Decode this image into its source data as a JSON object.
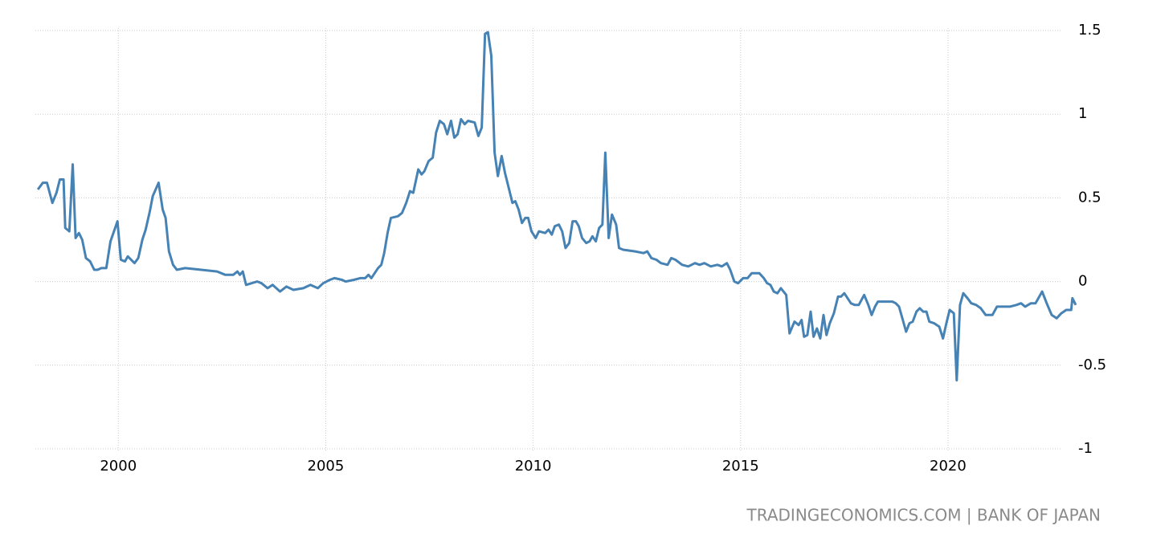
{
  "chart_data": {
    "type": "line",
    "source": "TRADINGECONOMICS.COM | BANK OF JAPAN",
    "color": "#4682b4",
    "grid": true,
    "xlim": [
      1998,
      2023.1
    ],
    "xticks": [
      2000,
      2005,
      2010,
      2015,
      2020
    ],
    "ylim": [
      -1,
      1.5
    ],
    "yticks": [
      1.5,
      1,
      0.5,
      0,
      -0.5,
      -1
    ],
    "x": [
      1998.06,
      1998.18,
      1998.28,
      1998.41,
      1998.51,
      1998.59,
      1998.68,
      1998.72,
      1998.82,
      1998.9,
      1998.97,
      1999.05,
      1999.13,
      1999.22,
      1999.32,
      1999.42,
      1999.5,
      1999.59,
      1999.71,
      1999.81,
      1999.98,
      2000.06,
      2000.16,
      2000.23,
      2000.39,
      2000.48,
      2000.58,
      2000.66,
      2000.76,
      2000.83,
      2000.97,
      2001.07,
      2001.14,
      2001.22,
      2001.32,
      2001.41,
      2001.61,
      2002.0,
      2002.38,
      2002.58,
      2002.77,
      2002.87,
      2002.93,
      2003.0,
      2003.08,
      2003.35,
      2003.45,
      2003.6,
      2003.72,
      2003.9,
      2004.05,
      2004.22,
      2004.46,
      2004.63,
      2004.81,
      2004.94,
      2005.1,
      2005.21,
      2005.39,
      2005.48,
      2005.68,
      2005.83,
      2005.95,
      2006.03,
      2006.1,
      2006.26,
      2006.34,
      2006.41,
      2006.49,
      2006.57,
      2006.74,
      2006.84,
      2006.94,
      2007.03,
      2007.11,
      2007.23,
      2007.31,
      2007.38,
      2007.48,
      2007.58,
      2007.66,
      2007.75,
      2007.85,
      2007.93,
      2008.02,
      2008.1,
      2008.18,
      2008.26,
      2008.35,
      2008.43,
      2008.59,
      2008.68,
      2008.76,
      2008.84,
      2008.91,
      2008.99,
      2009.07,
      2009.15,
      2009.24,
      2009.32,
      2009.42,
      2009.5,
      2009.57,
      2009.65,
      2009.73,
      2009.81,
      2009.88,
      2009.96,
      2010.06,
      2010.14,
      2010.29,
      2010.37,
      2010.45,
      2010.52,
      2010.62,
      2010.7,
      2010.78,
      2010.87,
      2010.95,
      2011.03,
      2011.1,
      2011.18,
      2011.28,
      2011.36,
      2011.43,
      2011.51,
      2011.59,
      2011.67,
      2011.74,
      2011.82,
      2011.9,
      2012.0,
      2012.07,
      2012.17,
      2012.46,
      2012.66,
      2012.75,
      2012.85,
      2012.97,
      2013.08,
      2013.24,
      2013.33,
      2013.43,
      2013.59,
      2013.74,
      2013.9,
      2014.01,
      2014.13,
      2014.28,
      2014.44,
      2014.55,
      2014.67,
      2014.75,
      2014.85,
      2014.94,
      2015.06,
      2015.17,
      2015.27,
      2015.45,
      2015.56,
      2015.64,
      2015.72,
      2015.8,
      2015.89,
      2015.97,
      2016.1,
      2016.18,
      2016.3,
      2016.4,
      2016.47,
      2016.53,
      2016.61,
      2016.69,
      2016.76,
      2016.84,
      2016.92,
      2017.0,
      2017.07,
      2017.15,
      2017.25,
      2017.35,
      2017.42,
      2017.5,
      2017.58,
      2017.66,
      2017.75,
      2017.85,
      2017.98,
      2018.08,
      2018.16,
      2018.24,
      2018.31,
      2018.66,
      2018.74,
      2018.82,
      2018.9,
      2018.99,
      2019.07,
      2019.15,
      2019.24,
      2019.32,
      2019.4,
      2019.48,
      2019.55,
      2019.67,
      2019.79,
      2019.88,
      2019.96,
      2020.04,
      2020.14,
      2020.21,
      2020.29,
      2020.37,
      2020.47,
      2020.56,
      2020.68,
      2020.79,
      2020.91,
      2021.07,
      2021.18,
      2021.49,
      2021.65,
      2021.76,
      2021.86,
      2022.0,
      2022.11,
      2022.27,
      2022.38,
      2022.5,
      2022.62,
      2022.73,
      2022.85,
      2022.97,
      2023.0,
      2023.08
    ],
    "values": [
      0.55,
      0.59,
      0.59,
      0.47,
      0.53,
      0.61,
      0.61,
      0.32,
      0.3,
      0.7,
      0.26,
      0.29,
      0.25,
      0.14,
      0.12,
      0.07,
      0.07,
      0.08,
      0.08,
      0.24,
      0.36,
      0.13,
      0.12,
      0.15,
      0.11,
      0.14,
      0.25,
      0.31,
      0.42,
      0.51,
      0.59,
      0.43,
      0.38,
      0.18,
      0.1,
      0.07,
      0.08,
      0.07,
      0.06,
      0.04,
      0.04,
      0.06,
      0.04,
      0.06,
      -0.02,
      0.0,
      -0.01,
      -0.04,
      -0.02,
      -0.06,
      -0.03,
      -0.05,
      -0.04,
      -0.02,
      -0.04,
      -0.01,
      0.01,
      0.02,
      0.01,
      0.0,
      0.01,
      0.02,
      0.02,
      0.04,
      0.02,
      0.08,
      0.1,
      0.17,
      0.29,
      0.38,
      0.39,
      0.41,
      0.47,
      0.54,
      0.53,
      0.67,
      0.64,
      0.66,
      0.72,
      0.74,
      0.89,
      0.96,
      0.94,
      0.88,
      0.96,
      0.86,
      0.88,
      0.97,
      0.94,
      0.96,
      0.95,
      0.87,
      0.92,
      1.48,
      1.49,
      1.35,
      0.77,
      0.63,
      0.75,
      0.65,
      0.55,
      0.47,
      0.48,
      0.43,
      0.35,
      0.38,
      0.38,
      0.3,
      0.26,
      0.3,
      0.29,
      0.31,
      0.28,
      0.33,
      0.34,
      0.3,
      0.2,
      0.23,
      0.36,
      0.36,
      0.33,
      0.26,
      0.23,
      0.24,
      0.27,
      0.24,
      0.32,
      0.34,
      0.77,
      0.26,
      0.4,
      0.34,
      0.2,
      0.19,
      0.18,
      0.17,
      0.18,
      0.14,
      0.13,
      0.11,
      0.1,
      0.14,
      0.13,
      0.1,
      0.09,
      0.11,
      0.1,
      0.11,
      0.09,
      0.1,
      0.09,
      0.11,
      0.07,
      0.0,
      -0.01,
      0.02,
      0.02,
      0.05,
      0.05,
      0.02,
      -0.01,
      -0.02,
      -0.06,
      -0.07,
      -0.04,
      -0.08,
      -0.31,
      -0.24,
      -0.26,
      -0.23,
      -0.33,
      -0.32,
      -0.18,
      -0.33,
      -0.28,
      -0.34,
      -0.2,
      -0.32,
      -0.25,
      -0.19,
      -0.09,
      -0.09,
      -0.07,
      -0.1,
      -0.13,
      -0.14,
      -0.14,
      -0.08,
      -0.14,
      -0.2,
      -0.15,
      -0.12,
      -0.12,
      -0.13,
      -0.15,
      -0.22,
      -0.3,
      -0.25,
      -0.24,
      -0.18,
      -0.16,
      -0.18,
      -0.18,
      -0.24,
      -0.25,
      -0.27,
      -0.34,
      -0.25,
      -0.17,
      -0.19,
      -0.59,
      -0.14,
      -0.07,
      -0.1,
      -0.13,
      -0.14,
      -0.16,
      -0.2,
      -0.2,
      -0.15,
      -0.15,
      -0.14,
      -0.13,
      -0.15,
      -0.13,
      -0.13,
      -0.06,
      -0.13,
      -0.2,
      -0.22,
      -0.19,
      -0.17,
      -0.17,
      -0.1,
      -0.14
    ]
  }
}
